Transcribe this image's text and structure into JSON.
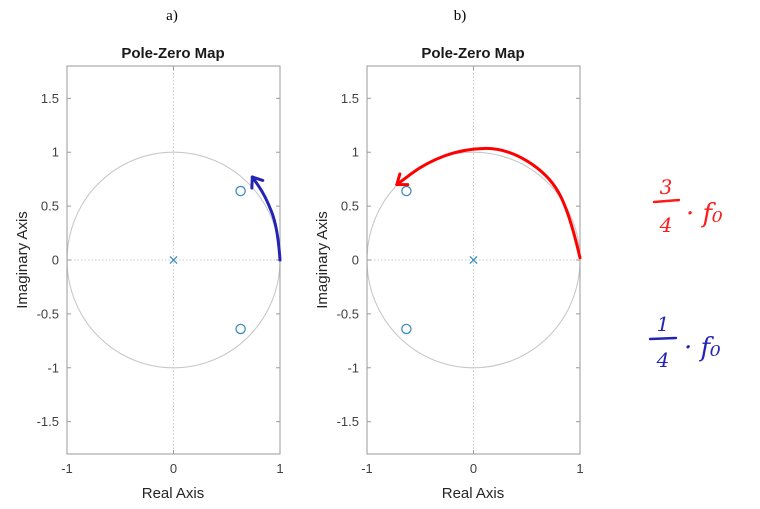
{
  "chart_data": [
    {
      "type": "scatter",
      "panel_label": "a)",
      "title": "Pole-Zero Map",
      "xlabel": "Real Axis",
      "ylabel": "Imaginary Axis",
      "xlim": [
        -1,
        1
      ],
      "ylim": [
        -1.8,
        1.8
      ],
      "xticks": [
        -1,
        0,
        1
      ],
      "yticks": [
        -1.5,
        -1,
        -0.5,
        0,
        0.5,
        1,
        1.5
      ],
      "unit_circle": true,
      "series": [
        {
          "marker": "x",
          "points": [
            {
              "x": 0,
              "y": 0
            }
          ]
        },
        {
          "marker": "o",
          "points": [
            {
              "x": 0.63,
              "y": 0.64
            },
            {
              "x": 0.63,
              "y": -0.64
            }
          ]
        }
      ],
      "annotation": {
        "type": "handwritten-arrow",
        "color": "#2323b5",
        "path": [
          [
            1.0,
            0.0
          ],
          [
            0.98,
            0.3
          ],
          [
            0.86,
            0.6
          ],
          [
            0.74,
            0.77
          ]
        ]
      }
    },
    {
      "type": "scatter",
      "panel_label": "b)",
      "title": "Pole-Zero Map",
      "xlabel": "Real Axis",
      "ylabel": "Imaginary Axis",
      "xlim": [
        -1,
        1
      ],
      "ylim": [
        -1.8,
        1.8
      ],
      "xticks": [
        -1,
        0,
        1
      ],
      "yticks": [
        -1.5,
        -1,
        -0.5,
        0,
        0.5,
        1,
        1.5
      ],
      "unit_circle": true,
      "series": [
        {
          "marker": "x",
          "points": [
            {
              "x": 0,
              "y": 0
            }
          ]
        },
        {
          "marker": "o",
          "points": [
            {
              "x": -0.63,
              "y": 0.64
            },
            {
              "x": -0.63,
              "y": -0.64
            }
          ]
        }
      ],
      "annotation": {
        "type": "handwritten-arrow",
        "color": "#ff0000",
        "path": [
          [
            1.0,
            0.02
          ],
          [
            0.9,
            0.45
          ],
          [
            0.7,
            0.8
          ],
          [
            0.3,
            1.04
          ],
          [
            -0.1,
            1.03
          ],
          [
            -0.45,
            0.9
          ],
          [
            -0.72,
            0.7
          ]
        ]
      }
    }
  ],
  "notes": [
    {
      "numerator": "3",
      "denominator": "4",
      "suffix": "· f₀",
      "color": "#ff1a1a"
    },
    {
      "numerator": "1",
      "denominator": "4",
      "suffix": "· f₀",
      "color": "#2323b5"
    }
  ],
  "colors": {
    "marker": "#3e8ebf",
    "grid": "#c8c8c8",
    "circle": "#c8c8c8",
    "frame": "#9a9a9a"
  }
}
